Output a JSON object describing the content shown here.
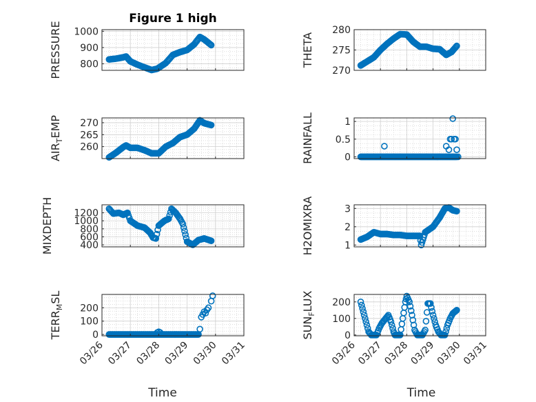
{
  "figure_title": "Figure 1 high",
  "colors": {
    "marker": "#0072BD",
    "axis": "#262626",
    "grid": "#c8c8c8"
  },
  "chart_data": [
    {
      "type": "scatter",
      "title": "Figure 1 high",
      "ylabel": "PRESSURE",
      "xlabel": "",
      "ylim": [
        760,
        1010
      ],
      "yticks": [
        800,
        900,
        1000
      ],
      "x_ticks": [
        "03/26",
        "03/27",
        "03/28",
        "03/29",
        "03/30",
        "03/31"
      ],
      "x_range": [
        0,
        5
      ],
      "grid": true,
      "marker": "circle-open",
      "points_key": [
        [
          0.25,
          827
        ],
        [
          0.5,
          832
        ],
        [
          0.75,
          840
        ],
        [
          0.85,
          845
        ],
        [
          1.0,
          815
        ],
        [
          1.25,
          795
        ],
        [
          1.5,
          778
        ],
        [
          1.75,
          762
        ],
        [
          1.95,
          770
        ],
        [
          2.25,
          805
        ],
        [
          2.5,
          855
        ],
        [
          2.75,
          872
        ],
        [
          3.0,
          885
        ],
        [
          3.25,
          920
        ],
        [
          3.45,
          965
        ],
        [
          3.6,
          950
        ],
        [
          3.85,
          915
        ]
      ]
    },
    {
      "type": "scatter",
      "ylabel": "THETA",
      "xlabel": "",
      "ylim": [
        270,
        280
      ],
      "yticks": [
        270,
        275,
        280
      ],
      "x_ticks": [
        "03/26",
        "03/27",
        "03/28",
        "03/29",
        "03/30",
        "03/31"
      ],
      "x_range": [
        0,
        5
      ],
      "grid": true,
      "marker": "circle-open",
      "points_key": [
        [
          0.25,
          271.2
        ],
        [
          0.5,
          272.2
        ],
        [
          0.75,
          273.2
        ],
        [
          1.0,
          275.0
        ],
        [
          1.25,
          276.5
        ],
        [
          1.5,
          277.8
        ],
        [
          1.75,
          278.9
        ],
        [
          2.0,
          278.8
        ],
        [
          2.25,
          277.0
        ],
        [
          2.5,
          275.8
        ],
        [
          2.75,
          275.8
        ],
        [
          3.0,
          275.3
        ],
        [
          3.25,
          275.2
        ],
        [
          3.5,
          273.8
        ],
        [
          3.7,
          274.5
        ],
        [
          3.9,
          276.0
        ]
      ]
    },
    {
      "type": "scatter",
      "ylabel": "AIR_TEMP",
      "ylabel_main": "AIR",
      "ylabel_sub": "T",
      "ylabel_rest": "EMP",
      "xlabel": "",
      "ylim": [
        255,
        272
      ],
      "yticks": [
        260,
        265,
        270
      ],
      "x_ticks": [
        "03/26",
        "03/27",
        "03/28",
        "03/29",
        "03/30",
        "03/31"
      ],
      "x_range": [
        0,
        5
      ],
      "grid": true,
      "marker": "circle-open",
      "points_key": [
        [
          0.25,
          255.5
        ],
        [
          0.5,
          257.5
        ],
        [
          0.75,
          259.8
        ],
        [
          0.85,
          260.5
        ],
        [
          1.0,
          259.5
        ],
        [
          1.25,
          259.5
        ],
        [
          1.5,
          258.5
        ],
        [
          1.75,
          257.2
        ],
        [
          2.0,
          257.2
        ],
        [
          2.25,
          260.0
        ],
        [
          2.5,
          261.5
        ],
        [
          2.75,
          264.0
        ],
        [
          3.0,
          265.0
        ],
        [
          3.25,
          267.5
        ],
        [
          3.45,
          271.0
        ],
        [
          3.6,
          269.8
        ],
        [
          3.85,
          269.0
        ]
      ]
    },
    {
      "type": "scatter",
      "ylabel": "RAINFALL",
      "xlabel": "",
      "ylim": [
        -0.05,
        1.1
      ],
      "yticks": [
        0,
        0.5,
        1
      ],
      "x_ticks": [
        "03/26",
        "03/27",
        "03/28",
        "03/29",
        "03/30",
        "03/31"
      ],
      "x_range": [
        0,
        5
      ],
      "grid": true,
      "marker": "circle-open",
      "baseline_range": [
        0.25,
        3.9
      ],
      "spikes": [
        [
          1.15,
          0.3
        ],
        [
          3.5,
          0.3
        ],
        [
          3.6,
          0.2
        ],
        [
          3.65,
          0.5
        ],
        [
          3.7,
          0.5
        ],
        [
          3.75,
          1.08
        ],
        [
          3.8,
          0.5
        ],
        [
          3.85,
          0.5
        ],
        [
          3.9,
          0.2
        ],
        [
          3.95,
          0.0
        ]
      ]
    },
    {
      "type": "scatter",
      "ylabel": "MIXDEPTH",
      "xlabel": "",
      "ylim": [
        350,
        1400
      ],
      "yticks": [
        400,
        600,
        800,
        1000,
        1200
      ],
      "x_ticks": [
        "03/26",
        "03/27",
        "03/28",
        "03/29",
        "03/30",
        "03/31"
      ],
      "x_range": [
        0,
        5
      ],
      "grid": true,
      "marker": "circle-open",
      "points_key": [
        [
          0.25,
          1300
        ],
        [
          0.4,
          1180
        ],
        [
          0.6,
          1200
        ],
        [
          0.75,
          1150
        ],
        [
          0.9,
          1200
        ],
        [
          1.0,
          1000
        ],
        [
          1.25,
          880
        ],
        [
          1.5,
          830
        ],
        [
          1.7,
          700
        ],
        [
          1.8,
          580
        ],
        [
          1.9,
          560
        ],
        [
          2.0,
          880
        ],
        [
          2.2,
          1000
        ],
        [
          2.35,
          1050
        ],
        [
          2.45,
          1300
        ],
        [
          2.6,
          1200
        ],
        [
          2.75,
          1050
        ],
        [
          2.85,
          920
        ],
        [
          3.0,
          480
        ],
        [
          3.2,
          400
        ],
        [
          3.4,
          520
        ],
        [
          3.6,
          560
        ],
        [
          3.85,
          500
        ]
      ]
    },
    {
      "type": "scatter",
      "ylabel": "H2OMIXRA",
      "xlabel": "",
      "ylim": [
        0.9,
        3.2
      ],
      "yticks": [
        1,
        2,
        3
      ],
      "x_ticks": [
        "03/26",
        "03/27",
        "03/28",
        "03/29",
        "03/30",
        "03/31"
      ],
      "x_range": [
        0,
        5
      ],
      "grid": true,
      "marker": "circle-open",
      "points_key": [
        [
          0.25,
          1.3
        ],
        [
          0.5,
          1.45
        ],
        [
          0.75,
          1.7
        ],
        [
          1.0,
          1.6
        ],
        [
          1.25,
          1.6
        ],
        [
          1.5,
          1.55
        ],
        [
          1.75,
          1.55
        ],
        [
          2.0,
          1.5
        ],
        [
          2.25,
          1.5
        ],
        [
          2.5,
          1.5
        ],
        [
          2.55,
          1.0
        ],
        [
          2.7,
          1.7
        ],
        [
          3.0,
          2.0
        ],
        [
          3.25,
          2.5
        ],
        [
          3.45,
          3.0
        ],
        [
          3.6,
          3.05
        ],
        [
          3.75,
          2.9
        ],
        [
          3.9,
          2.85
        ]
      ]
    },
    {
      "type": "scatter",
      "ylabel": "TERR_MSL",
      "ylabel_main": "TERR",
      "ylabel_sub": "M",
      "ylabel_rest": "SL",
      "xlabel": "Time",
      "ylim": [
        -10,
        300
      ],
      "yticks": [
        0,
        100,
        200
      ],
      "x_ticks": [
        "03/26",
        "03/27",
        "03/28",
        "03/29",
        "03/30",
        "03/31"
      ],
      "x_range": [
        0,
        5
      ],
      "grid": true,
      "marker": "circle-open",
      "baseline_range": [
        0.25,
        3.4
      ],
      "spikes": [
        [
          1.95,
          15
        ],
        [
          2.0,
          20
        ],
        [
          2.05,
          15
        ],
        [
          3.45,
          40
        ],
        [
          3.5,
          130
        ],
        [
          3.55,
          150
        ],
        [
          3.6,
          170
        ],
        [
          3.65,
          160
        ],
        [
          3.7,
          185
        ],
        [
          3.75,
          200
        ],
        [
          3.85,
          250
        ],
        [
          3.9,
          290
        ]
      ]
    },
    {
      "type": "scatter",
      "ylabel": "SUN_FLUX",
      "ylabel_main": "SUN",
      "ylabel_sub": "F",
      "ylabel_rest": "LUX",
      "xlabel": "Time",
      "ylim": [
        -5,
        245
      ],
      "yticks": [
        0,
        100,
        200
      ],
      "x_ticks": [
        "03/26",
        "03/27",
        "03/28",
        "03/29",
        "03/30",
        "03/31"
      ],
      "x_range": [
        0,
        5
      ],
      "grid": true,
      "marker": "circle-open",
      "points_key": [
        [
          0.25,
          200
        ],
        [
          0.35,
          140
        ],
        [
          0.45,
          80
        ],
        [
          0.55,
          20
        ],
        [
          0.65,
          0
        ],
        [
          0.85,
          0
        ],
        [
          0.95,
          40
        ],
        [
          1.05,
          70
        ],
        [
          1.2,
          100
        ],
        [
          1.3,
          120
        ],
        [
          1.4,
          80
        ],
        [
          1.5,
          20
        ],
        [
          1.55,
          0
        ],
        [
          1.75,
          0
        ],
        [
          1.85,
          100
        ],
        [
          1.95,
          200
        ],
        [
          2.0,
          235
        ],
        [
          2.1,
          200
        ],
        [
          2.2,
          120
        ],
        [
          2.3,
          30
        ],
        [
          2.4,
          0
        ],
        [
          2.6,
          0
        ],
        [
          2.7,
          30
        ],
        [
          2.8,
          190
        ],
        [
          2.9,
          190
        ],
        [
          3.0,
          120
        ],
        [
          3.1,
          60
        ],
        [
          3.2,
          20
        ],
        [
          3.3,
          0
        ],
        [
          3.45,
          0
        ],
        [
          3.55,
          60
        ],
        [
          3.65,
          100
        ],
        [
          3.75,
          130
        ],
        [
          3.9,
          150
        ]
      ]
    }
  ]
}
